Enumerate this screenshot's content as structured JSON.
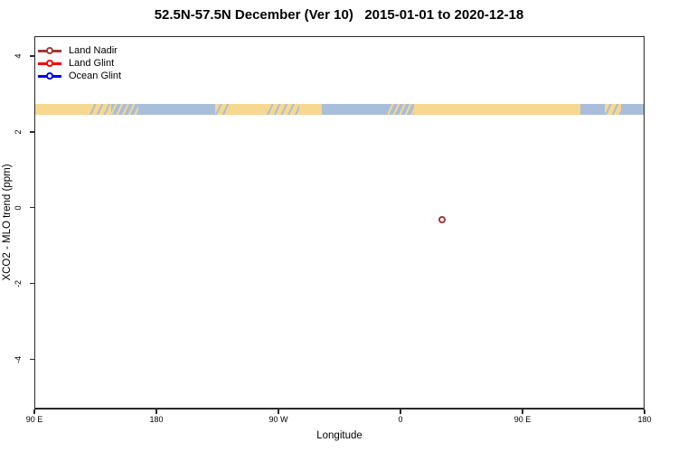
{
  "title": "52.5N-57.5N December (Ver 10)   2015-01-01 to 2020-12-18",
  "legend": {
    "items": [
      {
        "label": "Land Nadir",
        "color": "#9e3a36"
      },
      {
        "label": "Land Glint",
        "color": "#ff0000"
      },
      {
        "label": "Ocean Glint",
        "color": "#0000ff"
      }
    ]
  },
  "chart_data": {
    "type": "scatter",
    "title": "52.5N-57.5N December (Ver 10)   2015-01-01 to 2020-12-18",
    "xlabel": "Longitude",
    "ylabel": "XCO2 - MLO trend (ppm)",
    "x_axis": {
      "tick_labels": [
        "90 E",
        "180",
        "90 W",
        "0",
        "90 E",
        "180"
      ],
      "tick_positions_deg": [
        90,
        180,
        270,
        360,
        450,
        540
      ],
      "range_deg": [
        90,
        540
      ],
      "note": "longitude axis wraps: 90E eastward around the globe to 180"
    },
    "y_axis": {
      "tick_labels": [
        "4",
        "2",
        "0",
        "-2",
        "-4"
      ],
      "tick_values": [
        4,
        2,
        0,
        -2,
        -4
      ],
      "range": [
        -5.28,
        4.52
      ]
    },
    "grid": false,
    "legend_position": "top-left",
    "series": [
      {
        "name": "Land Nadir",
        "color": "#9e3a36",
        "points": [
          {
            "lon_axis_deg": 391,
            "value": -0.31
          }
        ]
      },
      {
        "name": "Land Glint",
        "color": "#ff0000",
        "points": []
      },
      {
        "name": "Ocean Glint",
        "color": "#0000ff",
        "points": []
      }
    ],
    "map_band": {
      "description": "land/ocean strip map of the 52.5N-57.5N latitude band",
      "top_value": 2.76,
      "bottom_value": 2.47,
      "land_color": "#f6d88f",
      "ocean_color": "#a9bedb",
      "segments": [
        [
          90,
          130,
          "land"
        ],
        [
          130,
          146,
          "coast_land"
        ],
        [
          146,
          166,
          "coast_ocean"
        ],
        [
          166,
          223,
          "ocean"
        ],
        [
          223,
          233,
          "coast_land"
        ],
        [
          233,
          261,
          "land"
        ],
        [
          261,
          285,
          "coast_land"
        ],
        [
          285,
          302,
          "land"
        ],
        [
          302,
          351,
          "ocean"
        ],
        [
          351,
          370,
          "coast_ocean"
        ],
        [
          370,
          493,
          "land"
        ],
        [
          493,
          511,
          "ocean"
        ],
        [
          511,
          523,
          "coast_land"
        ],
        [
          523,
          540,
          "ocean"
        ]
      ]
    }
  }
}
